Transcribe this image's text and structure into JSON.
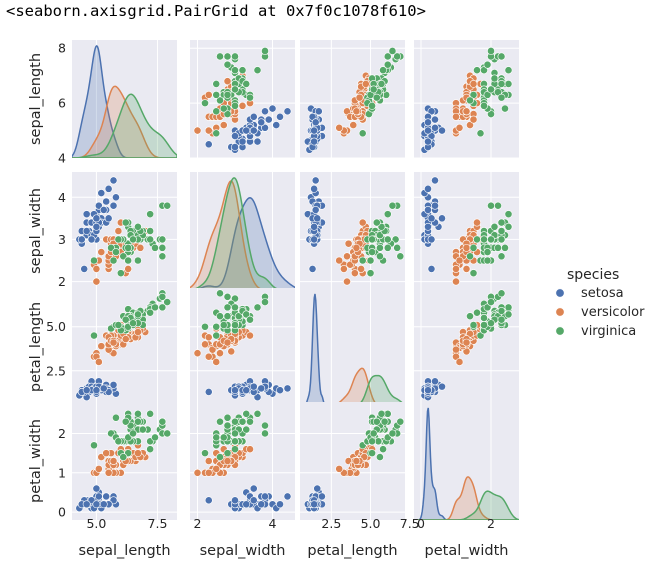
{
  "output_header": "<seaborn.axisgrid.PairGrid at 0x7f0c1078f610>",
  "chart_data": {
    "type": "pairplot",
    "variables": [
      "sepal_length",
      "sepal_width",
      "petal_length",
      "petal_width"
    ],
    "hue": "species",
    "legend": {
      "title": "species",
      "position": "right",
      "entries": [
        {
          "name": "setosa",
          "color": "#4c72b0"
        },
        {
          "name": "versicolor",
          "color": "#dd8452"
        },
        {
          "name": "virginica",
          "color": "#55a868"
        }
      ]
    },
    "axis_ranges": {
      "sepal_length": [
        4.0,
        8.3
      ],
      "sepal_width": [
        1.8,
        4.6
      ],
      "petal_length": [
        0.5,
        7.2
      ],
      "petal_width": [
        -0.2,
        2.8
      ]
    },
    "ticks": {
      "sepal_length_y": [
        "4",
        "6",
        "8"
      ],
      "sepal_width_y": [
        "2",
        "3",
        "4"
      ],
      "petal_length_y": [
        "2.5",
        "5.0"
      ],
      "petal_width_y": [
        "0",
        "1",
        "2"
      ],
      "sepal_length_x": [
        "5.0",
        "7.5"
      ],
      "sepal_width_x": [
        "2",
        "4"
      ],
      "petal_length_x": [
        "2.5",
        "5.0",
        "7.5"
      ],
      "petal_width_x": [
        "0",
        "2"
      ]
    },
    "tick_values": {
      "sepal_length_y": [
        4,
        6,
        8
      ],
      "sepal_width_y": [
        2,
        3,
        4
      ],
      "petal_length_y": [
        2.5,
        5.0
      ],
      "petal_width_y": [
        0,
        1,
        2
      ],
      "sepal_length_x": [
        5.0,
        7.5
      ],
      "sepal_width_x": [
        2,
        4
      ],
      "petal_length_x": [
        2.5,
        5.0,
        7.5
      ],
      "petal_width_x": [
        0,
        2
      ]
    },
    "species": [
      {
        "name": "setosa",
        "color": "#4c72b0",
        "points": [
          [
            5.1,
            3.5,
            1.4,
            0.2
          ],
          [
            4.9,
            3.0,
            1.4,
            0.2
          ],
          [
            4.7,
            3.2,
            1.3,
            0.2
          ],
          [
            4.6,
            3.1,
            1.5,
            0.2
          ],
          [
            5.0,
            3.6,
            1.4,
            0.2
          ],
          [
            5.4,
            3.9,
            1.7,
            0.4
          ],
          [
            4.6,
            3.4,
            1.4,
            0.3
          ],
          [
            5.0,
            3.4,
            1.5,
            0.2
          ],
          [
            4.4,
            2.9,
            1.4,
            0.2
          ],
          [
            4.9,
            3.1,
            1.5,
            0.1
          ],
          [
            5.4,
            3.7,
            1.5,
            0.2
          ],
          [
            4.8,
            3.4,
            1.6,
            0.2
          ],
          [
            4.8,
            3.0,
            1.4,
            0.1
          ],
          [
            4.3,
            3.0,
            1.1,
            0.1
          ],
          [
            5.8,
            4.0,
            1.2,
            0.2
          ],
          [
            5.7,
            4.4,
            1.5,
            0.4
          ],
          [
            5.4,
            3.9,
            1.3,
            0.4
          ],
          [
            5.1,
            3.5,
            1.4,
            0.3
          ],
          [
            5.7,
            3.8,
            1.7,
            0.3
          ],
          [
            5.1,
            3.8,
            1.5,
            0.3
          ],
          [
            5.4,
            3.4,
            1.7,
            0.2
          ],
          [
            5.1,
            3.7,
            1.5,
            0.4
          ],
          [
            4.6,
            3.6,
            1.0,
            0.2
          ],
          [
            5.1,
            3.3,
            1.7,
            0.5
          ],
          [
            4.8,
            3.4,
            1.9,
            0.2
          ],
          [
            5.0,
            3.0,
            1.6,
            0.2
          ],
          [
            5.0,
            3.4,
            1.6,
            0.4
          ],
          [
            5.2,
            3.5,
            1.5,
            0.2
          ],
          [
            5.2,
            3.4,
            1.4,
            0.2
          ],
          [
            4.7,
            3.2,
            1.6,
            0.2
          ],
          [
            4.8,
            3.1,
            1.6,
            0.2
          ],
          [
            5.4,
            3.4,
            1.5,
            0.4
          ],
          [
            5.2,
            4.1,
            1.5,
            0.1
          ],
          [
            5.5,
            4.2,
            1.4,
            0.2
          ],
          [
            4.9,
            3.1,
            1.5,
            0.2
          ],
          [
            5.0,
            3.2,
            1.2,
            0.2
          ],
          [
            5.5,
            3.5,
            1.3,
            0.2
          ],
          [
            4.9,
            3.6,
            1.4,
            0.1
          ],
          [
            4.4,
            3.0,
            1.3,
            0.2
          ],
          [
            5.1,
            3.4,
            1.5,
            0.2
          ],
          [
            5.0,
            3.5,
            1.3,
            0.3
          ],
          [
            4.5,
            2.3,
            1.3,
            0.3
          ],
          [
            4.4,
            3.2,
            1.3,
            0.2
          ],
          [
            5.0,
            3.5,
            1.6,
            0.6
          ],
          [
            5.1,
            3.8,
            1.9,
            0.4
          ],
          [
            4.8,
            3.0,
            1.4,
            0.3
          ],
          [
            5.1,
            3.8,
            1.6,
            0.2
          ],
          [
            4.6,
            3.2,
            1.4,
            0.2
          ],
          [
            5.3,
            3.7,
            1.5,
            0.2
          ],
          [
            5.0,
            3.3,
            1.4,
            0.2
          ]
        ]
      },
      {
        "name": "versicolor",
        "color": "#dd8452",
        "points": [
          [
            7.0,
            3.2,
            4.7,
            1.4
          ],
          [
            6.4,
            3.2,
            4.5,
            1.5
          ],
          [
            6.9,
            3.1,
            4.9,
            1.5
          ],
          [
            5.5,
            2.3,
            4.0,
            1.3
          ],
          [
            6.5,
            2.8,
            4.6,
            1.5
          ],
          [
            5.7,
            2.8,
            4.5,
            1.3
          ],
          [
            6.3,
            3.3,
            4.7,
            1.6
          ],
          [
            4.9,
            2.4,
            3.3,
            1.0
          ],
          [
            6.6,
            2.9,
            4.6,
            1.3
          ],
          [
            5.2,
            2.7,
            3.9,
            1.4
          ],
          [
            5.0,
            2.0,
            3.5,
            1.0
          ],
          [
            5.9,
            3.0,
            4.2,
            1.5
          ],
          [
            6.0,
            2.2,
            4.0,
            1.0
          ],
          [
            6.1,
            2.9,
            4.7,
            1.4
          ],
          [
            5.6,
            2.9,
            3.6,
            1.3
          ],
          [
            6.7,
            3.1,
            4.4,
            1.4
          ],
          [
            5.6,
            3.0,
            4.5,
            1.5
          ],
          [
            5.8,
            2.7,
            4.1,
            1.0
          ],
          [
            6.2,
            2.2,
            4.5,
            1.5
          ],
          [
            5.6,
            2.5,
            3.9,
            1.1
          ],
          [
            5.9,
            3.2,
            4.8,
            1.8
          ],
          [
            6.1,
            2.8,
            4.0,
            1.3
          ],
          [
            6.3,
            2.5,
            4.9,
            1.5
          ],
          [
            6.1,
            2.8,
            4.7,
            1.2
          ],
          [
            6.4,
            2.9,
            4.3,
            1.3
          ],
          [
            6.6,
            3.0,
            4.4,
            1.4
          ],
          [
            6.8,
            2.8,
            4.8,
            1.4
          ],
          [
            6.7,
            3.0,
            5.0,
            1.7
          ],
          [
            6.0,
            2.9,
            4.5,
            1.5
          ],
          [
            5.7,
            2.6,
            3.5,
            1.0
          ],
          [
            5.5,
            2.4,
            3.8,
            1.1
          ],
          [
            5.5,
            2.4,
            3.7,
            1.0
          ],
          [
            5.8,
            2.7,
            3.9,
            1.2
          ],
          [
            6.0,
            2.7,
            5.1,
            1.6
          ],
          [
            5.4,
            3.0,
            4.5,
            1.5
          ],
          [
            6.0,
            3.4,
            4.5,
            1.6
          ],
          [
            6.7,
            3.1,
            4.7,
            1.5
          ],
          [
            6.3,
            2.3,
            4.4,
            1.3
          ],
          [
            5.6,
            3.0,
            4.1,
            1.3
          ],
          [
            5.5,
            2.5,
            4.0,
            1.3
          ],
          [
            5.5,
            2.6,
            4.4,
            1.2
          ],
          [
            6.1,
            3.0,
            4.6,
            1.4
          ],
          [
            5.8,
            2.6,
            4.0,
            1.2
          ],
          [
            5.0,
            2.3,
            3.3,
            1.0
          ],
          [
            5.6,
            2.7,
            4.2,
            1.3
          ],
          [
            5.7,
            3.0,
            4.2,
            1.2
          ],
          [
            5.7,
            2.9,
            4.2,
            1.3
          ],
          [
            6.2,
            2.9,
            4.3,
            1.3
          ],
          [
            5.1,
            2.5,
            3.0,
            1.1
          ],
          [
            5.7,
            2.8,
            4.1,
            1.3
          ]
        ]
      },
      {
        "name": "virginica",
        "color": "#55a868",
        "points": [
          [
            6.3,
            3.3,
            6.0,
            2.5
          ],
          [
            5.8,
            2.7,
            5.1,
            1.9
          ],
          [
            7.1,
            3.0,
            5.9,
            2.1
          ],
          [
            6.3,
            2.9,
            5.6,
            1.8
          ],
          [
            6.5,
            3.0,
            5.8,
            2.2
          ],
          [
            7.6,
            3.0,
            6.6,
            2.1
          ],
          [
            4.9,
            2.5,
            4.5,
            1.7
          ],
          [
            7.3,
            2.9,
            6.3,
            1.8
          ],
          [
            6.7,
            2.5,
            5.8,
            1.8
          ],
          [
            7.2,
            3.6,
            6.1,
            2.5
          ],
          [
            6.5,
            3.2,
            5.1,
            2.0
          ],
          [
            6.4,
            2.7,
            5.3,
            1.9
          ],
          [
            6.8,
            3.0,
            5.5,
            2.1
          ],
          [
            5.7,
            2.5,
            5.0,
            2.0
          ],
          [
            5.8,
            2.8,
            5.1,
            2.4
          ],
          [
            6.4,
            3.2,
            5.3,
            2.3
          ],
          [
            6.5,
            3.0,
            5.5,
            1.8
          ],
          [
            7.7,
            3.8,
            6.7,
            2.2
          ],
          [
            7.7,
            2.6,
            6.9,
            2.3
          ],
          [
            6.0,
            2.2,
            5.0,
            1.5
          ],
          [
            6.9,
            3.2,
            5.7,
            2.3
          ],
          [
            5.6,
            2.8,
            4.9,
            2.0
          ],
          [
            7.7,
            2.8,
            6.7,
            2.0
          ],
          [
            6.3,
            2.7,
            4.9,
            1.8
          ],
          [
            6.7,
            3.3,
            5.7,
            2.1
          ],
          [
            7.2,
            3.2,
            6.0,
            1.8
          ],
          [
            6.2,
            2.8,
            4.8,
            1.8
          ],
          [
            6.1,
            3.0,
            4.9,
            1.8
          ],
          [
            6.4,
            2.8,
            5.6,
            2.1
          ],
          [
            7.2,
            3.0,
            5.8,
            1.6
          ],
          [
            7.4,
            2.8,
            6.1,
            1.9
          ],
          [
            7.9,
            3.8,
            6.4,
            2.0
          ],
          [
            6.4,
            2.8,
            5.6,
            2.2
          ],
          [
            6.3,
            2.8,
            5.1,
            1.5
          ],
          [
            6.1,
            2.6,
            5.6,
            1.4
          ],
          [
            7.7,
            3.0,
            6.1,
            2.3
          ],
          [
            6.3,
            3.4,
            5.6,
            2.4
          ],
          [
            6.4,
            3.1,
            5.5,
            1.8
          ],
          [
            6.0,
            3.0,
            4.8,
            1.8
          ],
          [
            6.9,
            3.1,
            5.4,
            2.1
          ],
          [
            6.7,
            3.1,
            5.6,
            2.4
          ],
          [
            6.9,
            3.1,
            5.1,
            2.3
          ],
          [
            5.8,
            2.7,
            5.1,
            1.9
          ],
          [
            6.8,
            3.2,
            5.9,
            2.3
          ],
          [
            6.7,
            3.3,
            5.7,
            2.5
          ],
          [
            6.7,
            3.0,
            5.2,
            2.3
          ],
          [
            6.3,
            2.5,
            5.0,
            1.9
          ],
          [
            6.5,
            3.0,
            5.2,
            2.0
          ],
          [
            6.2,
            3.4,
            5.4,
            2.3
          ],
          [
            5.9,
            3.0,
            5.1,
            1.8
          ]
        ]
      }
    ]
  }
}
